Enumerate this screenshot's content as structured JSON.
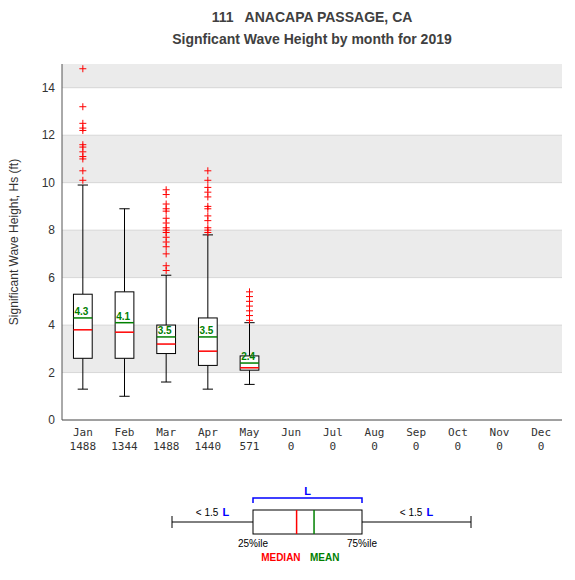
{
  "chart_data": {
    "type": "box",
    "title": "111   ANACAPA PASSAGE, CA",
    "subtitle": "Signficant Wave Height by month for 2019",
    "y_label": "Significant Wave Height, Hs (ft)",
    "categories": [
      "Jan",
      "Feb",
      "Mar",
      "Apr",
      "May",
      "Jun",
      "Jul",
      "Aug",
      "Sep",
      "Oct",
      "Nov",
      "Dec"
    ],
    "counts": [
      1488,
      1344,
      1488,
      1440,
      571,
      0,
      0,
      0,
      0,
      0,
      0,
      0
    ],
    "boxes": [
      {
        "q1": 2.6,
        "q3": 5.3,
        "whisker_low": 1.3,
        "whisker_high": 9.9,
        "fliers": [
          10.1,
          10.5,
          11.0,
          11.1,
          11.3,
          11.5,
          11.6,
          12.2,
          12.3,
          12.5,
          13.2,
          14.8
        ]
      },
      {
        "q1": 2.6,
        "q3": 5.4,
        "whisker_low": 1.0,
        "whisker_high": 8.9,
        "fliers": []
      },
      {
        "q1": 2.8,
        "q3": 4.0,
        "whisker_low": 1.6,
        "whisker_high": 6.1,
        "fliers": [
          6.3,
          6.5,
          7.0,
          7.3,
          7.5,
          7.7,
          7.9,
          8.0,
          8.1,
          8.3,
          8.5,
          8.8,
          8.9,
          9.1,
          9.5,
          9.7
        ]
      },
      {
        "q1": 2.3,
        "q3": 4.3,
        "whisker_low": 1.3,
        "whisker_high": 7.8,
        "fliers": [
          7.9,
          8.0,
          8.1,
          8.4,
          8.6,
          8.9,
          9.0,
          9.4,
          9.6,
          9.8,
          10.1,
          10.5
        ]
      },
      {
        "q1": 2.1,
        "q3": 2.7,
        "whisker_low": 1.5,
        "whisker_high": 4.1,
        "fliers": [
          4.2,
          4.4,
          4.6,
          4.8,
          5.0,
          5.2,
          5.4
        ]
      },
      null,
      null,
      null,
      null,
      null,
      null,
      null
    ],
    "series": [
      {
        "name": "MEDIAN",
        "color": "red",
        "values": [
          3.8,
          3.7,
          3.2,
          2.9,
          2.2,
          null,
          null,
          null,
          null,
          null,
          null,
          null
        ]
      },
      {
        "name": "MEAN",
        "color": "green",
        "values": [
          4.3,
          4.1,
          3.5,
          3.5,
          2.4,
          null,
          null,
          null,
          null,
          null,
          null,
          null
        ]
      }
    ],
    "annotations": {
      "q1_label": "25%ile",
      "q3_label": "75%ile",
      "iqr_label": "L",
      "whisker_label": "< 1.5"
    },
    "data_labels": true,
    "ylim": [
      0,
      15
    ],
    "yticks": [
      0,
      2,
      4,
      6,
      8,
      10,
      12,
      14
    ],
    "grid": true
  }
}
